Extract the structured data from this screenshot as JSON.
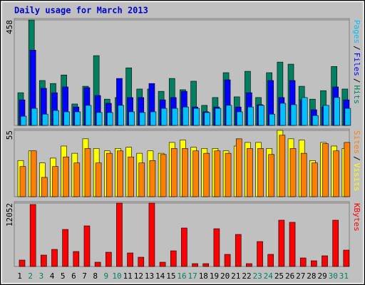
{
  "chart_data": [
    {
      "type": "bar",
      "title": "Daily usage for March 2013",
      "ylim": [
        0,
        458
      ],
      "yticks": [
        458
      ],
      "legend_separator": "/",
      "series": [
        {
          "name": "Hits",
          "color": "#008060",
          "values": [
            142,
            458,
            195,
            182,
            219,
            93,
            170,
            303,
            114,
            121,
            250,
            158,
            158,
            148,
            204,
            155,
            192,
            87,
            121,
            229,
            124,
            235,
            121,
            229,
            275,
            266,
            170,
            114,
            151,
            256,
            158
          ]
        },
        {
          "name": "Files",
          "color": "#0000ff",
          "values": [
            111,
            327,
            161,
            142,
            167,
            80,
            164,
            130,
            96,
            204,
            121,
            121,
            182,
            111,
            121,
            148,
            80,
            59,
            80,
            198,
            80,
            142,
            90,
            195,
            121,
            195,
            111,
            68,
            80,
            167,
            111
          ]
        },
        {
          "name": "Pages",
          "color": "#00c0ff",
          "values": [
            40,
            74,
            49,
            65,
            59,
            59,
            87,
            56,
            56,
            87,
            59,
            56,
            59,
            74,
            74,
            80,
            74,
            56,
            74,
            87,
            59,
            80,
            87,
            49,
            96,
            90,
            121,
            43,
            87,
            121,
            74
          ]
        }
      ]
    },
    {
      "type": "bar",
      "ylim": [
        0,
        55
      ],
      "yticks": [
        55
      ],
      "legend_separator": "/",
      "series": [
        {
          "name": "Visits",
          "color": "#ffff00",
          "values": [
            30,
            38,
            28,
            32,
            42,
            36,
            48,
            40,
            38,
            40,
            41,
            36,
            38,
            36,
            45,
            47,
            41,
            40,
            40,
            38,
            42,
            45,
            45,
            40,
            55,
            48,
            47,
            30,
            45,
            42,
            40
          ]
        },
        {
          "name": "Sites",
          "color": "#ff8000",
          "values": [
            25,
            38,
            16,
            25,
            33,
            28,
            40,
            28,
            36,
            38,
            33,
            28,
            30,
            35,
            40,
            40,
            38,
            36,
            38,
            36,
            48,
            40,
            40,
            35,
            51,
            40,
            36,
            28,
            44,
            38,
            45
          ]
        }
      ]
    },
    {
      "type": "bar",
      "ylim": [
        0,
        12052
      ],
      "yticks": [
        12052
      ],
      "categories": [
        "1",
        "2",
        "3",
        "4",
        "5",
        "6",
        "7",
        "8",
        "9",
        "10",
        "11",
        "12",
        "13",
        "14",
        "15",
        "16",
        "17",
        "18",
        "19",
        "20",
        "21",
        "22",
        "23",
        "24",
        "25",
        "26",
        "27",
        "28",
        "29",
        "30",
        "31"
      ],
      "category_colors": [
        "#000000",
        "#008060",
        "#008060",
        "#000000",
        "#000000",
        "#000000",
        "#000000",
        "#000000",
        "#008060",
        "#008060",
        "#000000",
        "#000000",
        "#000000",
        "#000000",
        "#000000",
        "#008060",
        "#008060",
        "#000000",
        "#000000",
        "#000000",
        "#000000",
        "#000000",
        "#008060",
        "#008060",
        "#000000",
        "#000000",
        "#000000",
        "#000000",
        "#000000",
        "#008060",
        "#008060"
      ],
      "series": [
        {
          "name": "KBytes",
          "color": "#ff0000",
          "values": [
            1219,
            11781,
            2167,
            3250,
            7041,
            2844,
            7719,
            812,
            2708,
            12052,
            2573,
            1760,
            12052,
            812,
            2979,
            7312,
            542,
            542,
            7177,
            2302,
            6094,
            542,
            4739,
            2302,
            8802,
            8396,
            1625,
            1083,
            2031,
            8802,
            3115
          ]
        }
      ]
    }
  ]
}
